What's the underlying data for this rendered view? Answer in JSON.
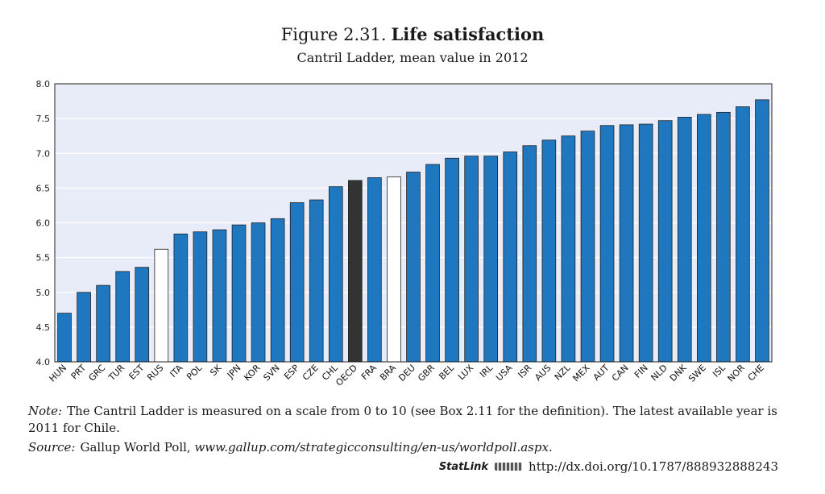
{
  "figure": {
    "number": "Figure 2.31.",
    "title": "Life satisfaction",
    "subtitle": "Cantril Ladder, mean value in 2012"
  },
  "note": {
    "label": "Note:",
    "text": "The Cantril Ladder is measured on a scale from 0 to 10 (see Box 2.11 for the definition). The latest available year is 2011 for Chile."
  },
  "source": {
    "label": "Source:",
    "text": "Gallup World Poll,",
    "url": "www.gallup.com/strategicconsulting/en-us/worldpoll.aspx."
  },
  "statlink": {
    "logo_text": "StatLink",
    "url": "http://dx.doi.org/10.1787/888932888243"
  },
  "chart_data": {
    "type": "bar",
    "categories": [
      "HUN",
      "PRT",
      "GRC",
      "TUR",
      "EST",
      "RUS",
      "ITA",
      "POL",
      "SK",
      "JPN",
      "KOR",
      "SVN",
      "ESP",
      "CZE",
      "CHL",
      "OECD",
      "FRA",
      "BRA",
      "DEU",
      "GBR",
      "BEL",
      "LUX",
      "IRL",
      "USA",
      "ISR",
      "AUS",
      "NZL",
      "MEX",
      "AUT",
      "CAN",
      "FIN",
      "NLD",
      "DNK",
      "SWE",
      "ISL",
      "NOR",
      "CHE"
    ],
    "values": [
      4.7,
      5.0,
      5.1,
      5.3,
      5.36,
      5.62,
      5.84,
      5.87,
      5.9,
      5.97,
      6.0,
      6.06,
      6.29,
      6.33,
      6.52,
      6.61,
      6.65,
      6.66,
      6.73,
      6.84,
      6.93,
      6.96,
      6.96,
      7.02,
      7.11,
      7.19,
      7.25,
      7.32,
      7.4,
      7.41,
      7.42,
      7.47,
      7.52,
      7.56,
      7.59,
      7.67,
      7.77
    ],
    "highlight": {
      "OECD": "average",
      "RUS": "partner",
      "BRA": "partner"
    },
    "colors": {
      "default": "#1f77c0",
      "average": "#333333",
      "partner": "#ffffff",
      "plot_bg": "#e8ecf8",
      "grid": "#ffffff"
    },
    "ylim": [
      4.0,
      8.0
    ],
    "yticks": [
      "4.0",
      "4.5",
      "5.0",
      "5.5",
      "6.0",
      "6.5",
      "7.0",
      "7.5",
      "8.0"
    ],
    "grid": true,
    "xlabel": "",
    "ylabel": ""
  }
}
